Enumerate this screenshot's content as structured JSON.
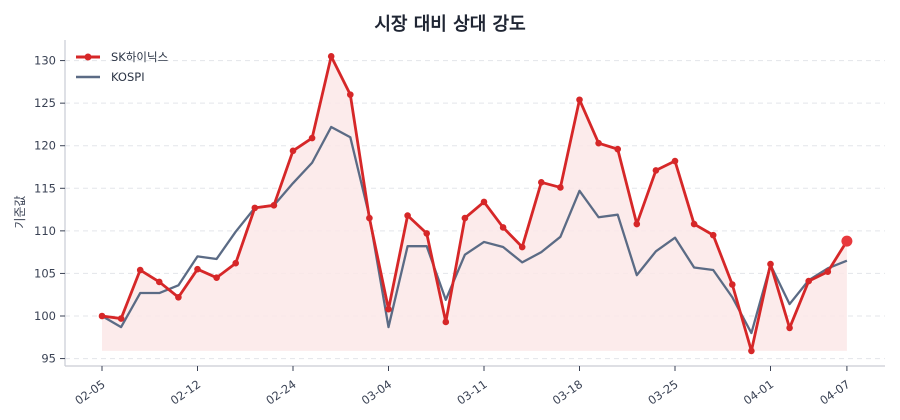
{
  "chart_data": {
    "type": "line",
    "title": "시장 대비 상대 강도",
    "xlabel": "",
    "ylabel": "기준값",
    "ylim": [
      94.2,
      132.3
    ],
    "yticks": [
      95,
      100,
      105,
      110,
      115,
      120,
      125,
      130
    ],
    "grid": "horizontal dashed",
    "legend_position": "upper left",
    "x_tick_labels": [
      "02-05",
      "02-12",
      "02-24",
      "03-04",
      "03-11",
      "03-18",
      "03-25",
      "04-01",
      "04-07"
    ],
    "x_tick_indices": [
      0,
      5,
      10,
      15,
      20,
      25,
      30,
      35,
      39
    ],
    "x_count": 40,
    "series": [
      {
        "name": "SK하이닉스",
        "color": "#d62728",
        "markers": true,
        "fill_color": "#fbe8e8",
        "values": [
          100.0,
          99.7,
          105.4,
          104.0,
          102.2,
          105.5,
          104.5,
          106.2,
          112.7,
          113.0,
          119.4,
          120.9,
          130.5,
          126.0,
          111.5,
          100.8,
          111.8,
          109.7,
          99.3,
          111.5,
          113.4,
          110.4,
          108.1,
          115.7,
          115.1,
          125.4,
          120.3,
          119.6,
          110.8,
          117.1,
          118.2,
          110.8,
          109.5,
          103.7,
          95.9,
          106.1,
          98.6,
          104.1,
          105.2,
          108.8
        ]
      },
      {
        "name": "KOSPI",
        "color": "#5b6b85",
        "markers": false,
        "values": [
          100.0,
          98.7,
          102.7,
          102.7,
          103.6,
          107.0,
          106.7,
          109.9,
          112.7,
          113.0,
          115.6,
          118.0,
          122.2,
          121.0,
          111.7,
          98.7,
          108.2,
          108.2,
          101.9,
          107.2,
          108.7,
          108.1,
          106.3,
          107.5,
          109.3,
          114.7,
          111.6,
          111.9,
          104.8,
          107.6,
          109.2,
          105.7,
          105.4,
          102.2,
          98.0,
          106.0,
          101.4,
          104.2,
          105.6,
          106.5
        ]
      }
    ]
  },
  "legend": {
    "items": [
      {
        "label": "SK하이닉스"
      },
      {
        "label": "KOSPI"
      }
    ]
  }
}
